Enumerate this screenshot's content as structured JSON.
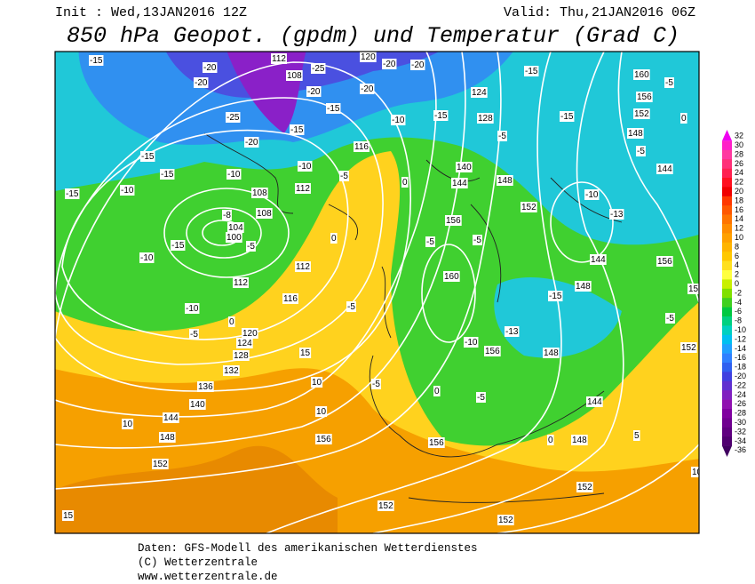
{
  "header": {
    "init": "Init : Wed,13JAN2016 12Z",
    "valid": "Valid: Thu,21JAN2016 06Z",
    "title": "850 hPa Geopot. (gpdm) und Temperatur (Grad C)"
  },
  "map": {
    "contour_labels": [
      "112",
      "-20",
      "108",
      "-25",
      "120",
      "-20",
      "-20",
      "-20",
      "-20",
      "-20",
      "-25",
      "-20",
      "-15",
      "-15",
      "-10",
      "-15",
      "124",
      "128",
      "-15",
      "160",
      "156",
      "152",
      "-5",
      "0",
      "-15",
      "148",
      "-5",
      "144",
      "-10",
      "-13",
      "144",
      "156",
      "156",
      "-15",
      "-15",
      "-10",
      "-15",
      "-10",
      "-8",
      "104",
      "100",
      "-5",
      "108",
      "108",
      "112",
      "-15",
      "-10",
      "112",
      "116",
      "-10",
      "0",
      "120",
      "-5",
      "124",
      "128",
      "132",
      "136",
      "140",
      "144",
      "10",
      "148",
      "152",
      "10",
      "10",
      "156",
      "15",
      "-5",
      "-5",
      "0",
      "156",
      "-5",
      "0",
      "148",
      "5",
      "152",
      "152",
      "152",
      "10",
      "15",
      "144",
      "-5",
      "152",
      "-15",
      "148",
      "-10",
      "156",
      "-13",
      "148",
      "-5",
      "-5",
      "160",
      "156",
      "152",
      "148",
      "144",
      "140",
      "-5",
      "-10",
      "-5",
      "116",
      "0",
      "0",
      "112",
      "-15"
    ]
  },
  "colorbar": {
    "values": [
      32,
      30,
      28,
      26,
      24,
      22,
      20,
      18,
      16,
      14,
      12,
      10,
      8,
      6,
      4,
      2,
      0,
      -2,
      -4,
      -6,
      -8,
      -10,
      -12,
      -14,
      -16,
      -18,
      -20,
      -22,
      -24,
      -26,
      -28,
      -30,
      -32,
      -34,
      -36
    ],
    "colors": [
      "#f000f0",
      "#ff20c8",
      "#ff3aa0",
      "#ff3078",
      "#ff2050",
      "#ff1020",
      "#f00000",
      "#ff3800",
      "#ff5800",
      "#ff7400",
      "#ff8c00",
      "#ffa000",
      "#ffb400",
      "#ffc800",
      "#ffe020",
      "#ffff40",
      "#c8f000",
      "#80e000",
      "#40d020",
      "#00c840",
      "#00d080",
      "#00d0c0",
      "#00c0f0",
      "#20a0ff",
      "#3080ff",
      "#3060f0",
      "#4040e0",
      "#6030d0",
      "#8020c0",
      "#9010b0",
      "#8000a0",
      "#700090",
      "#600080",
      "#500070",
      "#400060"
    ]
  },
  "footer": [
    "Daten: GFS-Modell des amerikanischen Wetterdienstes",
    "(C) Wetterzentrale",
    "www.wetterzentrale.de"
  ]
}
